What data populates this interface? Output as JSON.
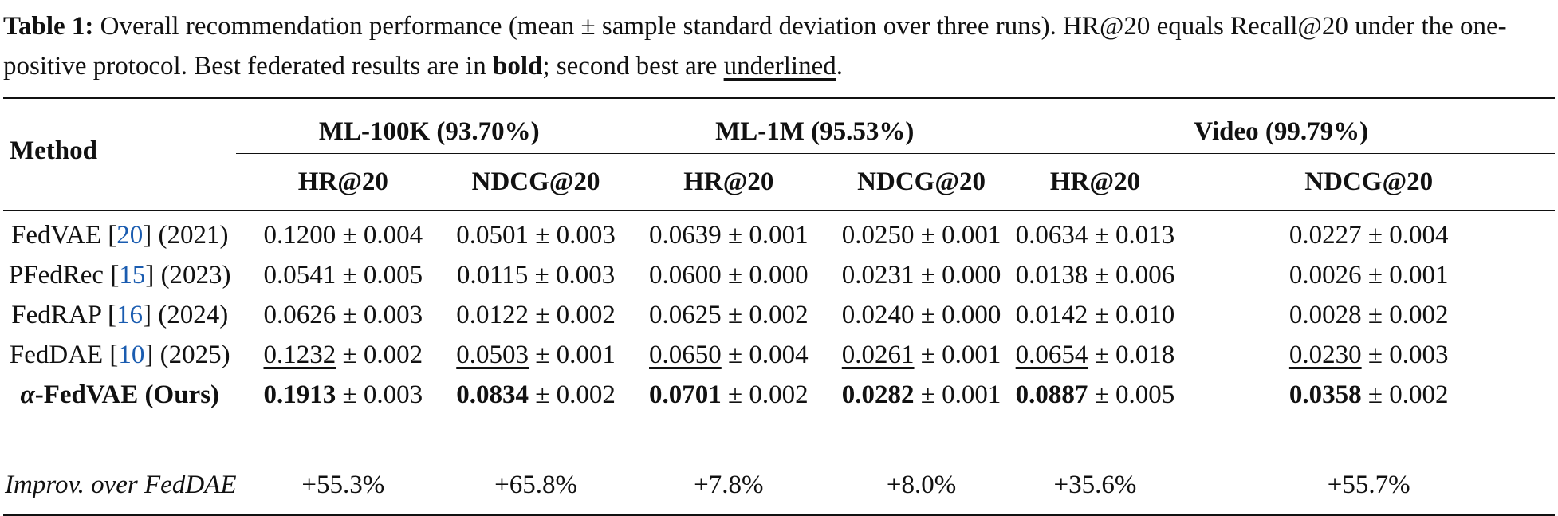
{
  "caption": {
    "label": "Table 1:",
    "text_part1": " Overall recommendation performance (mean ± sample standard deviation over three runs). HR@20 equals Recall@20 under the one-positive protocol. Best federated results are in ",
    "bold_word": "bold",
    "text_part2": "; second best are ",
    "underlined_word": "underlined",
    "text_end": "."
  },
  "table": {
    "method_header": "Method",
    "groups": [
      "ML-100K (93.70%)",
      "ML-1M (95.53%)",
      "Video (99.79%)"
    ],
    "metrics": [
      "HR@20",
      "NDCG@20",
      "HR@20",
      "NDCG@20",
      "HR@20",
      "NDCG@20"
    ],
    "rows": [
      {
        "name": "FedVAE [",
        "ref": "20",
        "name_end": "] (2021)",
        "cells": [
          {
            "mean": "0.1200",
            "sd": " ± 0.004"
          },
          {
            "mean": "0.0501",
            "sd": " ± 0.003"
          },
          {
            "mean": "0.0639",
            "sd": " ± 0.001"
          },
          {
            "mean": "0.0250",
            "sd": " ± 0.001"
          },
          {
            "mean": "0.0634",
            "sd": " ± 0.013"
          },
          {
            "mean": "0.0227",
            "sd": " ± 0.004"
          }
        ]
      },
      {
        "name": "PFedRec [",
        "ref": "15",
        "name_end": "] (2023)",
        "cells": [
          {
            "mean": "0.0541",
            "sd": " ± 0.005"
          },
          {
            "mean": "0.0115",
            "sd": " ± 0.003"
          },
          {
            "mean": "0.0600",
            "sd": " ± 0.000"
          },
          {
            "mean": "0.0231",
            "sd": " ± 0.000"
          },
          {
            "mean": "0.0138",
            "sd": " ± 0.006"
          },
          {
            "mean": "0.0026",
            "sd": " ± 0.001"
          }
        ]
      },
      {
        "name": "FedRAP [",
        "ref": "16",
        "name_end": "] (2024)",
        "cells": [
          {
            "mean": "0.0626",
            "sd": " ± 0.003"
          },
          {
            "mean": "0.0122",
            "sd": " ± 0.002"
          },
          {
            "mean": "0.0625",
            "sd": " ± 0.002"
          },
          {
            "mean": "0.0240",
            "sd": " ± 0.000"
          },
          {
            "mean": "0.0142",
            "sd": " ± 0.010"
          },
          {
            "mean": "0.0028",
            "sd": " ± 0.002"
          }
        ]
      },
      {
        "name": "FedDAE [",
        "ref": "10",
        "name_end": "] (2025)",
        "cells": [
          {
            "mean": "0.1232",
            "sd": " ± 0.002"
          },
          {
            "mean": "0.0503",
            "sd": " ± 0.001"
          },
          {
            "mean": "0.0650",
            "sd": " ± 0.004"
          },
          {
            "mean": "0.0261",
            "sd": " ± 0.001"
          },
          {
            "mean": "0.0654",
            "sd": " ± 0.018"
          },
          {
            "mean": "0.0230",
            "sd": " ± 0.003"
          }
        ]
      },
      {
        "name_greek": "α",
        "name": "-FedVAE (Ours)",
        "cells": [
          {
            "mean": "0.1913",
            "sd": " ± 0.003"
          },
          {
            "mean": "0.0834",
            "sd": " ± 0.002"
          },
          {
            "mean": "0.0701",
            "sd": " ± 0.002"
          },
          {
            "mean": "0.0282",
            "sd": " ± 0.001"
          },
          {
            "mean": "0.0887",
            "sd": " ± 0.005"
          },
          {
            "mean": "0.0358",
            "sd": " ± 0.002"
          }
        ]
      }
    ],
    "improvement": {
      "label": "Improv. over FedDAE",
      "values": [
        "+55.3%",
        "+65.8%",
        "+7.8%",
        "+8.0%",
        "+35.6%",
        "+55.7%"
      ]
    }
  },
  "colors": {
    "reference_link": "#1a5cb0",
    "text": "#111111"
  }
}
